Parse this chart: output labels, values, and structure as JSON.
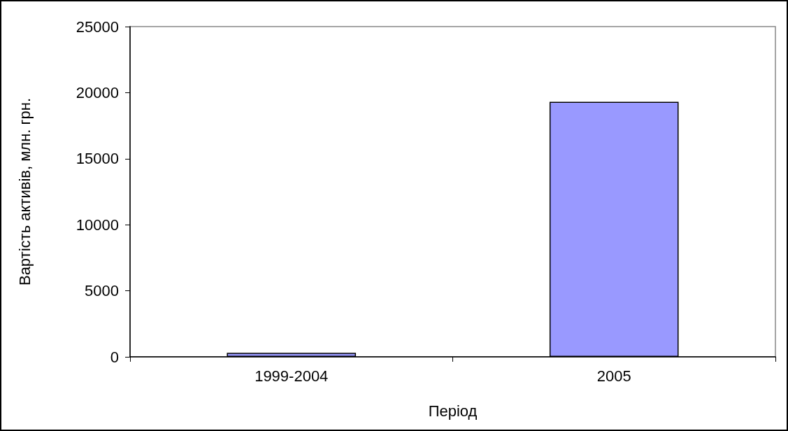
{
  "chart_data": {
    "type": "bar",
    "xlabel": "Період",
    "ylabel": "Вартість активів, млн. грн.",
    "categories": [
      "1999-2004",
      "2005"
    ],
    "values": [
      300,
      19300
    ],
    "color": "#9999ff",
    "ylim": [
      0,
      25000
    ],
    "yticks": [
      0,
      5000,
      10000,
      15000,
      20000,
      25000
    ],
    "grid": false
  }
}
